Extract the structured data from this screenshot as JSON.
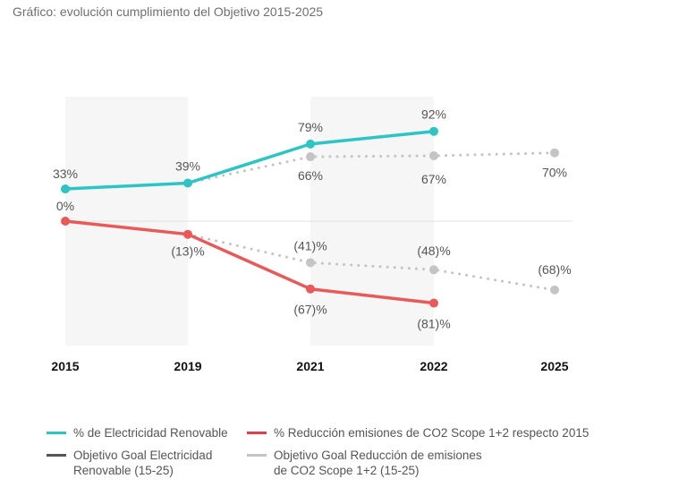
{
  "title": "Gráfico: evolución cumplimiento del Objetivo 2015-2025",
  "chart_data": {
    "type": "line",
    "title": "Gráfico: evolución cumplimiento del Objetivo 2015-2025",
    "xlabel": "",
    "ylabel": "",
    "x": [
      "2015",
      "2019",
      "2021",
      "2022",
      "2025"
    ],
    "grid": false,
    "shaded_periods": [
      [
        "2015",
        "2019"
      ],
      [
        "2021",
        "2022"
      ]
    ],
    "legend_position": "bottom",
    "series": [
      {
        "name": "% de Electricidad Renovable",
        "color": "#2ec4c4",
        "style": "solid",
        "points": [
          {
            "x": "2015",
            "y": 33,
            "label": "33%"
          },
          {
            "x": "2019",
            "y": 39,
            "label": "39%"
          },
          {
            "x": "2021",
            "y": 79,
            "label": "79%"
          },
          {
            "x": "2022",
            "y": 92,
            "label": "92%"
          }
        ]
      },
      {
        "name": "% Reducción emisiones de CO2 Scope 1+2 respecto 2015",
        "color": "#e85a5a",
        "style": "solid",
        "points": [
          {
            "x": "2015",
            "y": 0,
            "label": "0%"
          },
          {
            "x": "2019",
            "y": -13,
            "label": "(13)%"
          },
          {
            "x": "2021",
            "y": -67,
            "label": "(67)%"
          },
          {
            "x": "2022",
            "y": -81,
            "label": "(81)%"
          }
        ]
      },
      {
        "name": "Objetivo Goal Electricidad Renovable (15-25)",
        "color": "#c4c4c4",
        "legend_color": "#555555",
        "style": "dotted",
        "points": [
          {
            "x": "2019",
            "y": 39,
            "label": ""
          },
          {
            "x": "2021",
            "y": 66,
            "label": "66%"
          },
          {
            "x": "2022",
            "y": 67,
            "label": "67%"
          },
          {
            "x": "2025",
            "y": 70,
            "label": "70%"
          }
        ]
      },
      {
        "name": "Objetivo Goal Reducción de emisiones de CO2 Scope 1+2  (15-25)",
        "color": "#c4c4c4",
        "legend_color": "#c4c4c4",
        "style": "dotted",
        "points": [
          {
            "x": "2019",
            "y": -13,
            "label": ""
          },
          {
            "x": "2021",
            "y": -41,
            "label": "(41)%"
          },
          {
            "x": "2022",
            "y": -48,
            "label": "(48)%"
          },
          {
            "x": "2025",
            "y": -68,
            "label": "(68)%"
          }
        ]
      }
    ]
  },
  "legend": [
    {
      "label": "% de Electricidad Renovable",
      "color": "#2ec4c4"
    },
    {
      "label": "% Reducción emisiones de CO2 Scope 1+2 respecto 2015",
      "color": "#d9434e"
    },
    {
      "label": "Objetivo Goal Electricidad\nRenovable (15-25)",
      "color": "#555555"
    },
    {
      "label": "Objetivo Goal Reducción de emisiones\nde CO2 Scope 1+2  (15-25)",
      "color": "#c4c4c4"
    }
  ]
}
